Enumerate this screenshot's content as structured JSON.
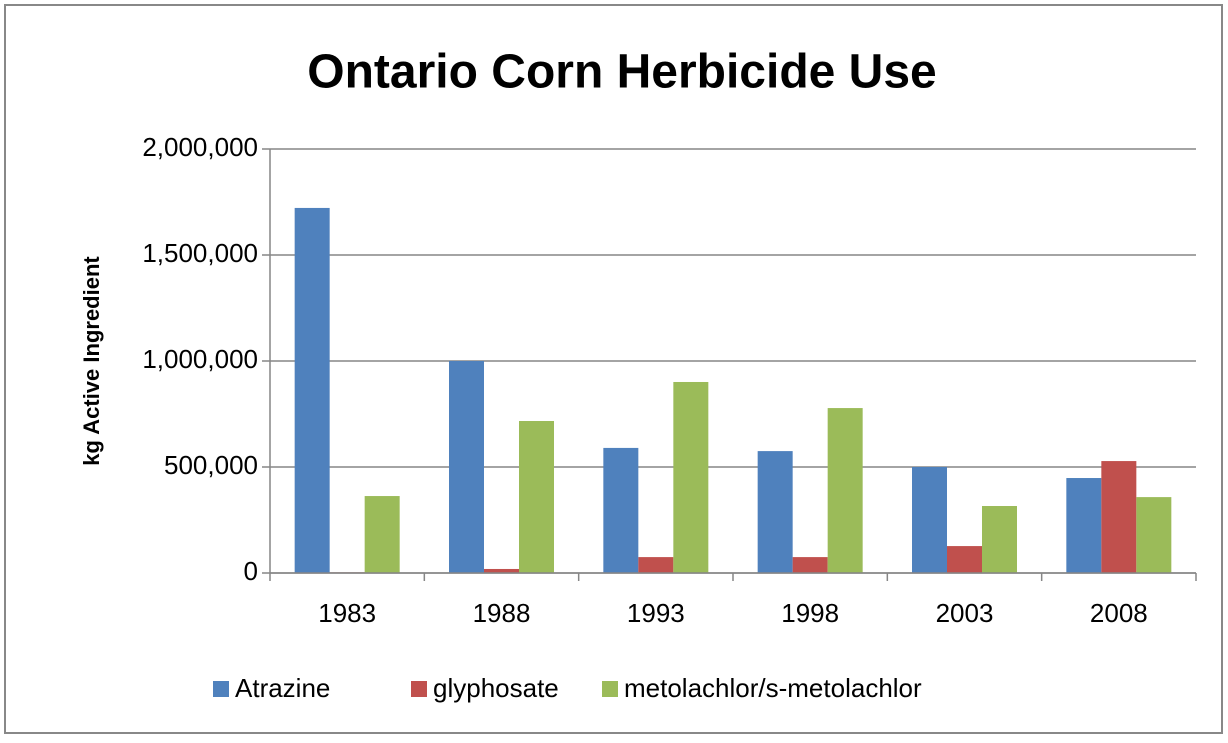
{
  "chart_data": {
    "type": "bar",
    "title": "Ontario Corn Herbicide Use",
    "y_label": "kg Active Ingredient",
    "categories": [
      "1983",
      "1988",
      "1993",
      "1998",
      "2003",
      "2008"
    ],
    "series": [
      {
        "name": "Atrazine",
        "color": "#4f81bd",
        "values": [
          1722000,
          1000000,
          590000,
          575000,
          500000,
          448000
        ]
      },
      {
        "name": "glyphosate",
        "color": "#c0504d",
        "values": [
          3000,
          19000,
          75000,
          75000,
          127000,
          528000
        ]
      },
      {
        "name": "metolachlor/s-metolachlor",
        "color": "#9bbb59",
        "values": [
          363000,
          717000,
          901000,
          778000,
          316000,
          358000
        ]
      }
    ],
    "ylim": [
      0,
      2000000
    ],
    "yticks": [
      0,
      {
        "value": 500000,
        "label": "500,000"
      },
      {
        "value": 1000000,
        "label": "1,000,000"
      },
      {
        "value": 1500000,
        "label": "1,500,000"
      },
      {
        "value": 2000000,
        "label": "2,000,000"
      }
    ],
    "grid": true,
    "legend": "bottom"
  }
}
